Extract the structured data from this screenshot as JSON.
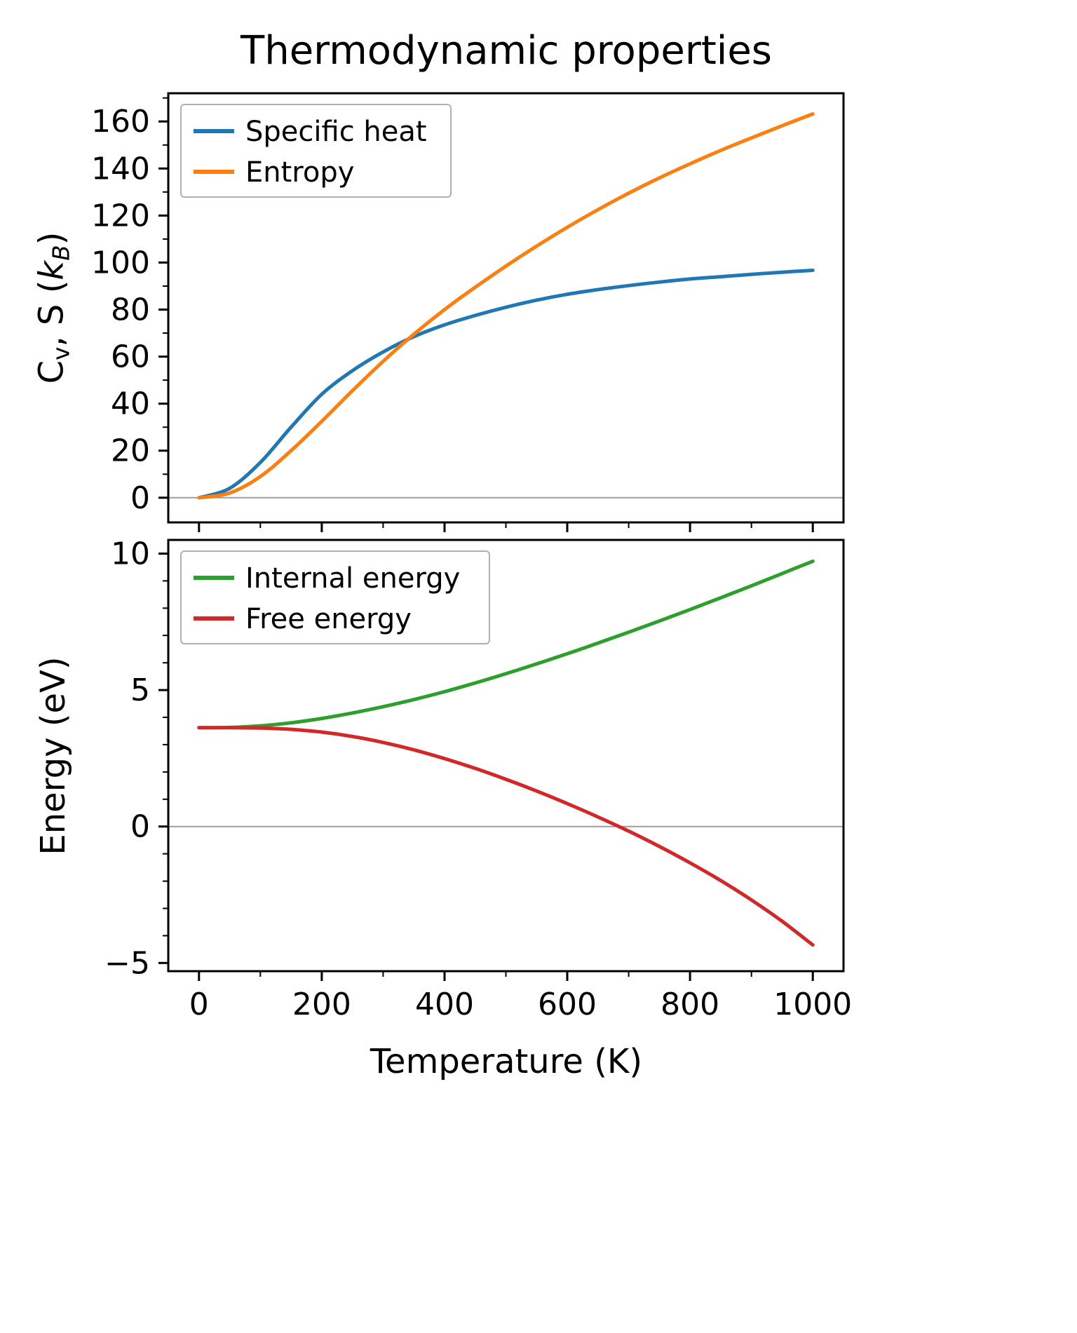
{
  "figure": {
    "title": "Thermodynamic properties"
  },
  "top_plot": {
    "ylabel_parts": {
      "c": "C",
      "v": "v",
      "mid": ", S (",
      "k": "k",
      "b": "B",
      "close": ")"
    }
  },
  "bottom_plot": {
    "ylabel": "Energy (eV)",
    "xlabel": "Temperature (K)"
  },
  "chart_data": [
    {
      "type": "line",
      "title": "Thermodynamic properties",
      "ylabel": "Cv, S (kB)",
      "xlabel": "",
      "x": [
        0,
        50,
        100,
        150,
        200,
        250,
        300,
        350,
        400,
        450,
        500,
        550,
        600,
        650,
        700,
        750,
        800,
        850,
        900,
        950,
        1000
      ],
      "series": [
        {
          "name": "Specific heat",
          "color": "#1f77b4",
          "values": [
            0,
            4,
            15,
            30,
            44,
            54,
            62,
            68.5,
            73.5,
            77.5,
            81,
            84,
            86.5,
            88.5,
            90.2,
            91.7,
            93,
            94,
            95,
            95.9,
            96.7
          ]
        },
        {
          "name": "Entropy",
          "color": "#ff7f0e",
          "values": [
            0,
            2,
            9,
            20,
            32.5,
            45.5,
            58,
            69.5,
            80,
            89.5,
            98.5,
            107,
            115,
            122.5,
            129.5,
            136,
            142,
            147.7,
            153,
            158.2,
            163.2
          ]
        }
      ],
      "xlim": [
        -50,
        1050
      ],
      "ylim": [
        -10.5,
        172
      ],
      "yticks": {
        "values": [
          0,
          20,
          40,
          60,
          80,
          100,
          120,
          140,
          160
        ],
        "labels": [
          "0",
          "20",
          "40",
          "60",
          "80",
          "100",
          "120",
          "140",
          "160"
        ]
      },
      "xticks": {
        "values": [
          0,
          200,
          400,
          600,
          800,
          1000
        ],
        "labels": []
      },
      "y_minor": [
        10,
        30,
        50,
        70,
        90,
        110,
        130,
        150,
        170
      ],
      "x_minor": [
        100,
        300,
        500,
        700,
        900
      ],
      "zero_line": true,
      "legend_position": "upper left"
    },
    {
      "type": "line",
      "title": "",
      "ylabel": "Energy (eV)",
      "xlabel": "Temperature (K)",
      "x": [
        0,
        50,
        100,
        150,
        200,
        250,
        300,
        350,
        400,
        450,
        500,
        550,
        600,
        650,
        700,
        750,
        800,
        850,
        900,
        950,
        1000
      ],
      "series": [
        {
          "name": "Internal energy",
          "color": "#2ca02c",
          "values": [
            3.62,
            3.63,
            3.69,
            3.8,
            3.96,
            4.16,
            4.39,
            4.65,
            4.94,
            5.26,
            5.6,
            5.96,
            6.33,
            6.72,
            7.12,
            7.53,
            7.95,
            8.38,
            8.82,
            9.27,
            9.72
          ]
        },
        {
          "name": "Free energy",
          "color": "#d62728",
          "values": [
            3.62,
            3.62,
            3.61,
            3.56,
            3.46,
            3.3,
            3.08,
            2.81,
            2.49,
            2.13,
            1.73,
            1.3,
            0.84,
            0.35,
            -0.17,
            -0.73,
            -1.33,
            -1.98,
            -2.69,
            -3.47,
            -4.34
          ]
        }
      ],
      "xlim": [
        -50,
        1050
      ],
      "ylim": [
        -5.3,
        10.5
      ],
      "yticks": {
        "values": [
          -5,
          0,
          5,
          10
        ],
        "labels": [
          "−5",
          "0",
          "5",
          "10"
        ]
      },
      "xticks": {
        "values": [
          0,
          200,
          400,
          600,
          800,
          1000
        ],
        "labels": [
          "0",
          "200",
          "400",
          "600",
          "800",
          "1000"
        ]
      },
      "y_minor": [
        -4,
        -3,
        -2,
        -1,
        1,
        2,
        3,
        4,
        6,
        7,
        8,
        9
      ],
      "x_minor": [
        100,
        300,
        500,
        700,
        900
      ],
      "zero_line": true,
      "legend_position": "upper left"
    }
  ],
  "colors": {
    "specific_heat": "#1f77b4",
    "entropy": "#ff7f0e",
    "internal_energy": "#2ca02c",
    "free_energy": "#d62728",
    "zero_line": "#9e9e9e",
    "legend_border": "#b0b0b0",
    "spine": "#000000"
  }
}
